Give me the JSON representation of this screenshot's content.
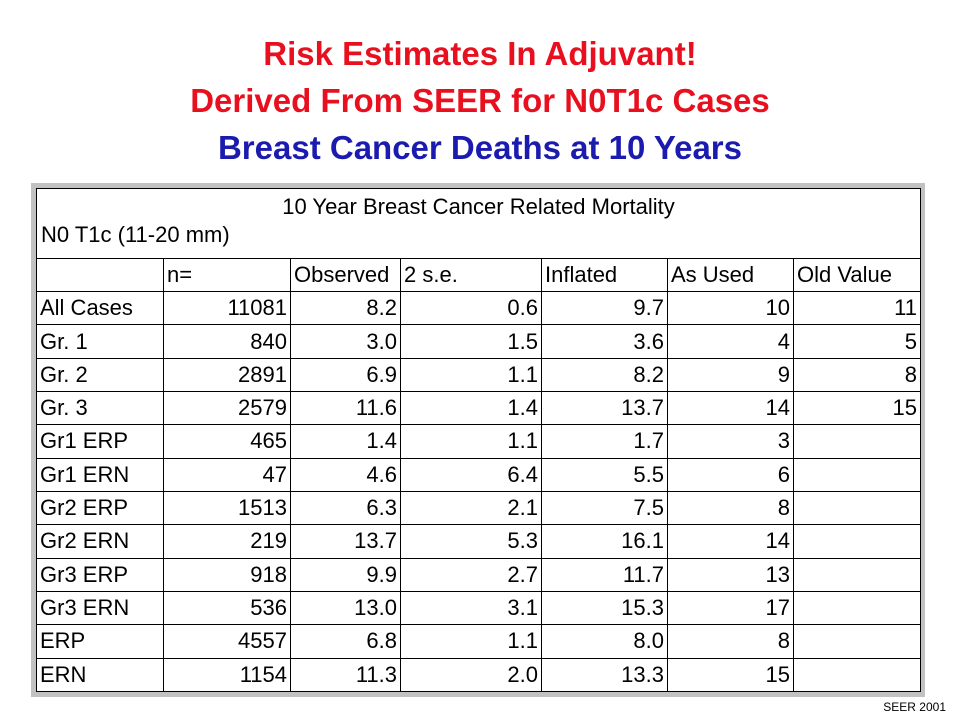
{
  "title": {
    "line1": "Risk Estimates In Adjuvant!",
    "line2": "Derived From SEER for N0T1c Cases",
    "line3": "Breast Cancer Deaths at 10 Years"
  },
  "table": {
    "caption": "10 Year Breast Cancer Related Mortality",
    "subcaption": "N0 T1c (11-20 mm)",
    "columns": [
      "",
      "n=",
      "Observed",
      "2 s.e.",
      "Inflated",
      "As Used",
      "Old Value"
    ],
    "rows": [
      [
        "All Cases",
        "11081",
        "8.2",
        "0.6",
        "9.7",
        "10",
        "11"
      ],
      [
        "Gr. 1",
        "840",
        "3.0",
        "1.5",
        "3.6",
        "4",
        "5"
      ],
      [
        "Gr. 2",
        "2891",
        "6.9",
        "1.1",
        "8.2",
        "9",
        "8"
      ],
      [
        "Gr. 3",
        "2579",
        "11.6",
        "1.4",
        "13.7",
        "14",
        "15"
      ],
      [
        "Gr1 ERP",
        "465",
        "1.4",
        "1.1",
        "1.7",
        "3",
        ""
      ],
      [
        "Gr1 ERN",
        "47",
        "4.6",
        "6.4",
        "5.5",
        "6",
        ""
      ],
      [
        "Gr2 ERP",
        "1513",
        "6.3",
        "2.1",
        "7.5",
        "8",
        ""
      ],
      [
        "Gr2 ERN",
        "219",
        "13.7",
        "5.3",
        "16.1",
        "14",
        ""
      ],
      [
        "Gr3 ERP",
        "918",
        "9.9",
        "2.7",
        "11.7",
        "13",
        ""
      ],
      [
        "Gr3 ERN",
        "536",
        "13.0",
        "3.1",
        "15.3",
        "17",
        ""
      ],
      [
        "ERP",
        "4557",
        "6.8",
        "1.1",
        "8.0",
        "8",
        ""
      ],
      [
        "ERN",
        "1154",
        "11.3",
        "2.0",
        "13.3",
        "15",
        ""
      ]
    ]
  },
  "source": "SEER 2001",
  "colors": {
    "title_red": "#e8101e",
    "title_blue": "#1b1bb0",
    "frame_gray": "#c2c2c2"
  }
}
